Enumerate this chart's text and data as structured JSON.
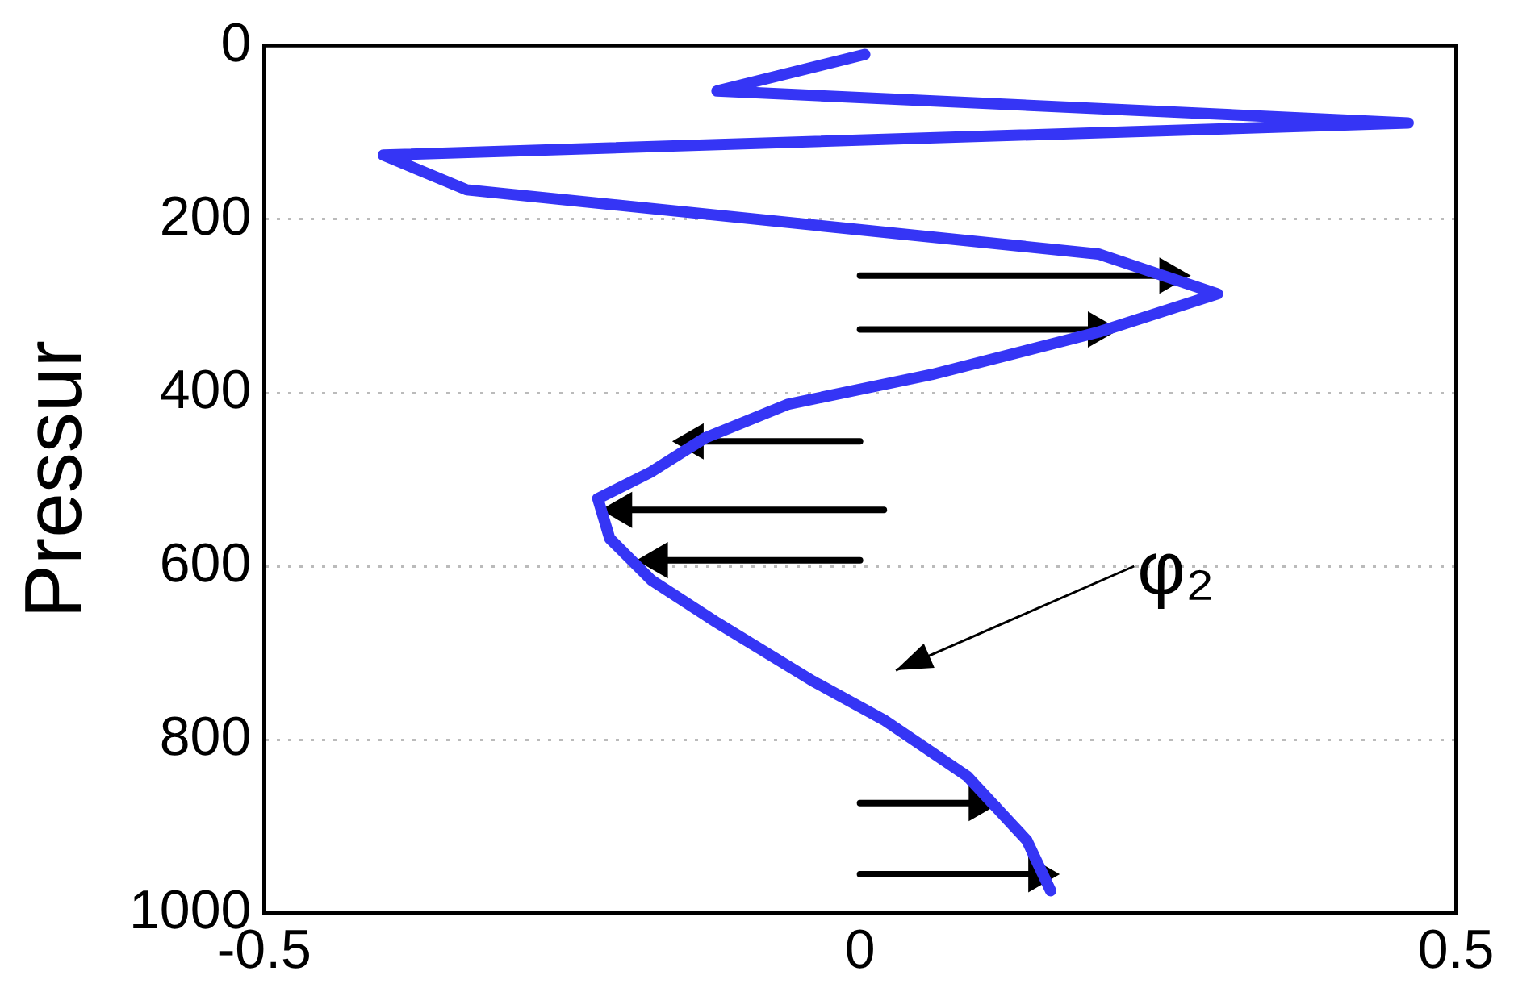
{
  "chart_data": {
    "type": "line",
    "ylabel": "Pressur",
    "xlim": [
      -0.5,
      0.5
    ],
    "xticks": [
      -0.5,
      0,
      0.5
    ],
    "ylim": [
      1000,
      0
    ],
    "yticks": [
      0,
      200,
      400,
      600,
      800,
      1000
    ],
    "grid": "y",
    "line_style": "solid",
    "series": [
      {
        "color": "#3535f5",
        "x": [
          0.004,
          -0.12,
          0.46,
          -0.4,
          -0.33,
          0.2,
          0.3,
          0.2,
          0.06,
          -0.06,
          -0.13,
          -0.175,
          -0.22,
          -0.21,
          -0.175,
          -0.12,
          -0.04,
          0.02,
          0.09,
          0.14,
          0.16
        ],
        "values": [
          10,
          52,
          89,
          126,
          166,
          240,
          286,
          330,
          379,
          413,
          452,
          491,
          522,
          568,
          616,
          665,
          732,
          777,
          842,
          916,
          974
        ]
      },
      {
        "color": "#000000",
        "marker": "triangle",
        "x": [
          0,
          0.26
        ],
        "values": [
          265,
          265
        ]
      },
      {
        "color": "#000000",
        "marker": "triangle",
        "x": [
          0,
          0.2
        ],
        "values": [
          327,
          327
        ]
      },
      {
        "color": "#000000",
        "marker": "triangle",
        "x": [
          0,
          -0.14
        ],
        "values": [
          456,
          456
        ]
      },
      {
        "color": "#000000",
        "marker": "triangle",
        "x": [
          0.02,
          -0.2
        ],
        "values": [
          535,
          535
        ]
      },
      {
        "color": "#000000",
        "marker": "triangle",
        "x": [
          0,
          -0.17
        ],
        "values": [
          593,
          593
        ]
      },
      {
        "color": "#000000",
        "marker": "triangle",
        "x": [
          0,
          0.1
        ],
        "values": [
          873,
          873
        ]
      },
      {
        "color": "#000000",
        "marker": "triangle",
        "x": [
          0,
          0.15
        ],
        "values": [
          955,
          955
        ]
      }
    ],
    "annotations": [
      "φ₂"
    ]
  }
}
